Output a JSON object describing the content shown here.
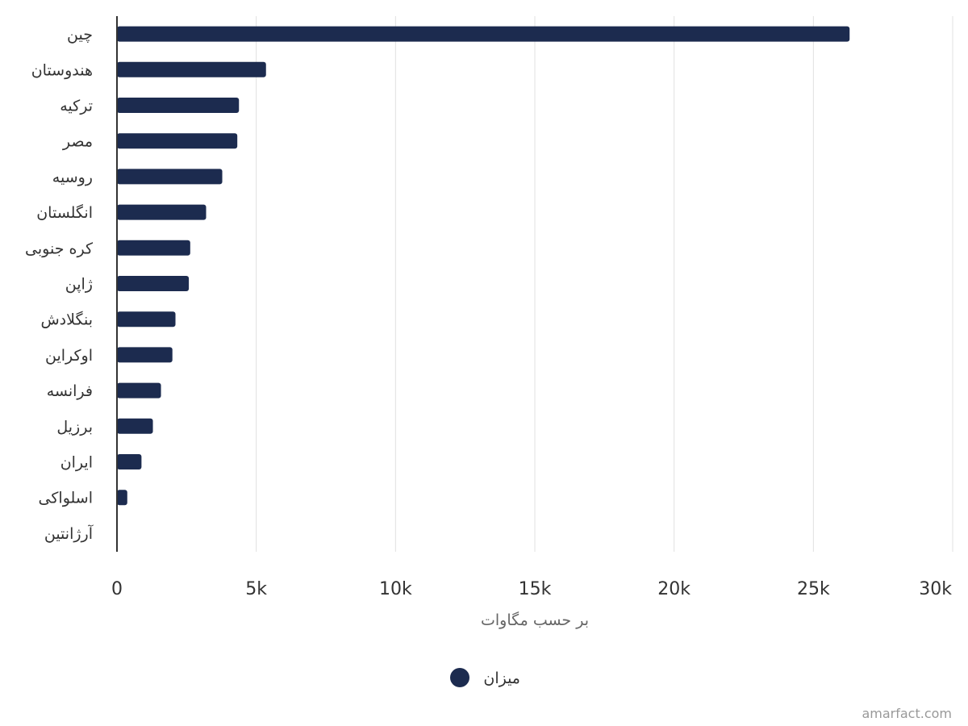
{
  "chart_data": {
    "type": "bar",
    "orientation": "horizontal",
    "categories": [
      "چین",
      "هندوستان",
      "ترکیه",
      "مصر",
      "روسیه",
      "انگلستان",
      "کره جنوبی",
      "ژاپن",
      "بنگلادش",
      "اوکراین",
      "فرانسه",
      "برزیل",
      "ایران",
      "اسلواکی",
      "آرژانتین"
    ],
    "series": [
      {
        "name": "میزان",
        "color": "#1c2b4f",
        "values": [
          26300,
          5350,
          4380,
          4320,
          3780,
          3200,
          2630,
          2580,
          2100,
          1990,
          1580,
          1290,
          880,
          370,
          0
        ]
      }
    ],
    "xlabel": "بر حسب مگاوات",
    "xlim": [
      0,
      30000
    ],
    "xticks": [
      0,
      5000,
      10000,
      15000,
      20000,
      25000,
      30000
    ],
    "xtick_labels": [
      "0",
      "5k",
      "10k",
      "15k",
      "20k",
      "25k",
      "30k"
    ],
    "grid": true,
    "legend_position": "bottom-center"
  },
  "legend": {
    "label": "میزان"
  },
  "watermark": "amarfact.com"
}
